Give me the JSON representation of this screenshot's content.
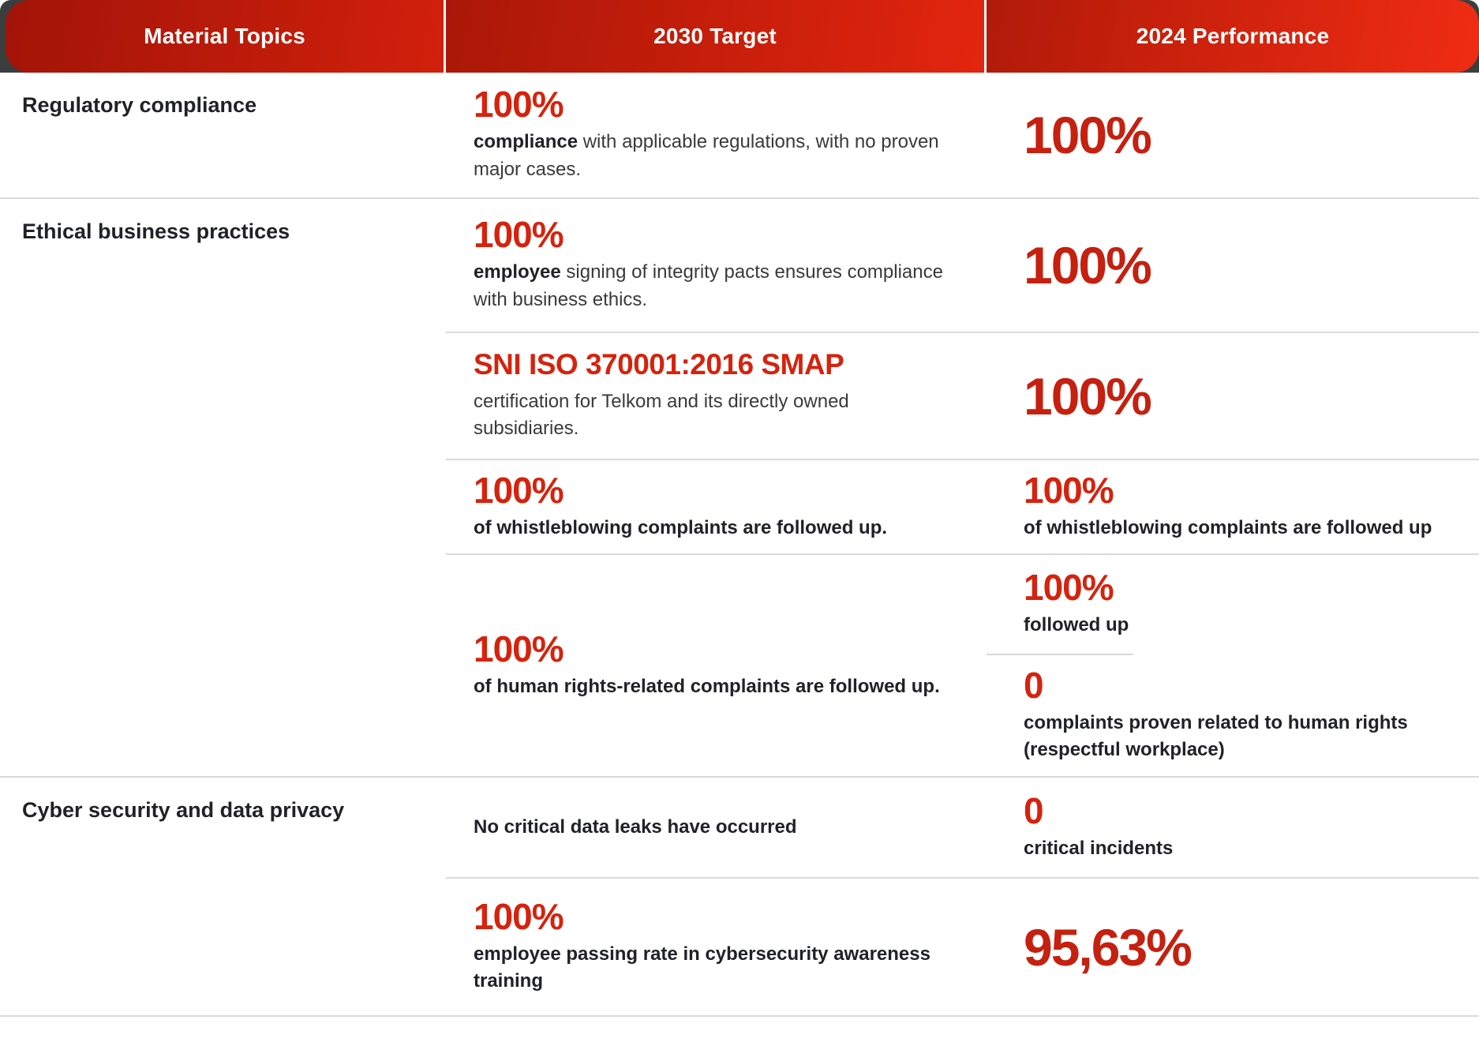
{
  "colors": {
    "h1a": "#a21408",
    "h1b": "#d2200c",
    "h2a": "#aa1708",
    "h2b": "#e2250e",
    "h3a": "#b11a09",
    "h3b": "#f02c13",
    "red-mid": "#d5230e",
    "red-big": "#c52010",
    "line": "#d9d9d9",
    "corner-dark": "#3a3e3e",
    "text-dark": "#212226",
    "text-body": "#3a3a3c"
  },
  "header": {
    "columns": [
      "Material Topics",
      "2030 Target",
      "2024 Performance"
    ]
  },
  "sections": [
    {
      "topic": "Regulatory compliance",
      "rows": [
        {
          "target": {
            "big": "100%",
            "desc": [
              [
                "compliance",
                1
              ],
              [
                " with applicable regulations, with no proven major cases.",
                0
              ]
            ]
          },
          "perf": [
            {
              "big": "100%"
            }
          ]
        }
      ]
    },
    {
      "topic": "Ethical business practices",
      "rows": [
        {
          "target": {
            "big": "100%",
            "desc": [
              [
                "employee",
                1
              ],
              [
                " signing of integrity pacts ensures compliance with business ethics.",
                0
              ]
            ]
          },
          "perf": [
            {
              "big": "100%"
            }
          ]
        },
        {
          "target": {
            "big": "SNI ISO 370001:2016 SMAP",
            "desc": [
              [
                "certification for Telkom and its directly owned subsidiaries.",
                0
              ]
            ]
          },
          "perf": [
            {
              "big": "100%"
            }
          ]
        },
        {
          "target": {
            "big": "100%",
            "desc": [
              [
                "of whistleblowing complaints are followed up.",
                1
              ]
            ]
          },
          "perf": [
            {
              "big": "100%",
              "desc": [
                [
                  "of whistleblowing complaints are followed up",
                  1
                ]
              ]
            }
          ]
        },
        {
          "target": {
            "big": "100%",
            "desc": [
              [
                "of human rights-related complaints are followed up.",
                1
              ]
            ]
          },
          "perf": [
            {
              "big": "100%",
              "desc": [
                [
                  "followed up",
                  1
                ]
              ]
            },
            {
              "big": "0",
              "desc": [
                [
                  "complaints proven related to human rights (respectful workplace)",
                  1
                ]
              ]
            }
          ]
        }
      ]
    },
    {
      "topic": "Cyber security and data privacy",
      "rows": [
        {
          "target": {
            "desc": [
              [
                "No critical data leaks have occurred",
                1
              ]
            ]
          },
          "perf": [
            {
              "big": "0",
              "desc": [
                [
                  "critical incidents",
                  1
                ]
              ]
            }
          ]
        },
        {
          "target": {
            "big": "100%",
            "desc": [
              [
                "employee passing rate in cybersecurity awareness training",
                1
              ]
            ]
          },
          "perf": [
            {
              "big": "95,63%"
            }
          ]
        }
      ]
    }
  ]
}
